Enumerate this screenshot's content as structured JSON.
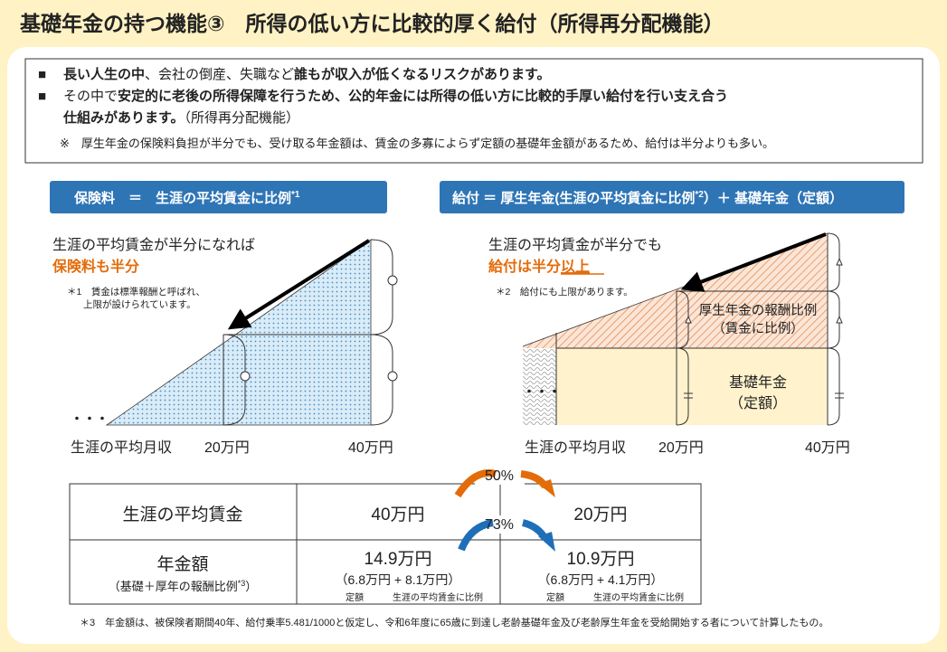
{
  "title": "基礎年金の持つ機能③　所得の低い方に比較的厚く給付（所得再分配機能）",
  "summary": {
    "bullets": [
      {
        "segments": [
          {
            "text": "長い人生の中",
            "bold": true
          },
          {
            "text": "、会社の倒産、失職など",
            "bold": false
          },
          {
            "text": "誰もが収入が低くなるリスクがあります。",
            "bold": true
          }
        ]
      },
      {
        "segments": [
          {
            "text": "その中で",
            "bold": false
          },
          {
            "text": "安定的に老後の所得保障を行うため、公的年金には所得の低い方に比較的手厚い給付を行い支え合う",
            "bold": true
          }
        ],
        "continuation": [
          {
            "text": "仕組みがあります。",
            "bold": true
          },
          {
            "text": "（所得再分配機能）",
            "bold": false
          }
        ]
      }
    ],
    "note": "※　厚生年金の保険料負担が半分でも、受け取る年金額は、賃金の多寡によらず定額の基礎年金額があるため、給付は半分よりも多い。"
  },
  "left_panel": {
    "header": {
      "text": "保険料　＝　生涯の平均賃金に比例",
      "sup": "*1"
    },
    "caption": "生涯の平均賃金が半分になれば",
    "highlight": "保険料も半分",
    "footnote": [
      "＊1　賃金は標準報酬と呼ばれ、",
      "上限が設けられています。"
    ],
    "ellipsis": "・・・",
    "x_label": "生涯の平均月収",
    "x_ticks": [
      "20万円",
      "40万円"
    ]
  },
  "right_panel": {
    "header": {
      "before": "給付 ＝ 厚生年金(生涯の平均賃金に比例",
      "sup": "*2",
      "after": "）＋ 基礎年金（定額）"
    },
    "caption": "生涯の平均賃金が半分でも",
    "highlight": "給付は半分",
    "highlight_underlined": "以上",
    "footnote": "＊2　給付にも上限があります。",
    "upper_block": [
      "厚生年金の報酬比例",
      "（賃金に比例）"
    ],
    "lower_block": [
      "基礎年金",
      "（定額）"
    ],
    "ellipsis": "・・・",
    "x_label": "生涯の平均月収",
    "x_ticks": [
      "20万円",
      "40万円"
    ]
  },
  "ratios": {
    "wage": "50%",
    "pension": "73%"
  },
  "table": {
    "rows": [
      {
        "label": "生涯の平均賃金",
        "cells": [
          {
            "amount": "40万円"
          },
          {
            "amount": "20万円"
          }
        ]
      },
      {
        "label": "年金額",
        "sublabel": "（基礎＋厚年の報酬比例",
        "sublabel_sup": "*3",
        "sublabel_end": "）",
        "cells": [
          {
            "amount": "14.9万円",
            "breakdown": "（6.8万円 + 8.1万円）",
            "notes": [
              "定額",
              "生涯の平均賃金に比例"
            ]
          },
          {
            "amount": "10.9万円",
            "breakdown": "（6.8万円 + 4.1万円）",
            "notes": [
              "定額",
              "生涯の平均賃金に比例"
            ]
          }
        ]
      }
    ]
  },
  "footnote": "＊3　年金額は、被保険者期間40年、給付乗率5.481/1000と仮定し、令和6年度に65歳に到達し老齢基礎年金及び老齢厚生年金を受給開始する者について計算したもの。"
}
